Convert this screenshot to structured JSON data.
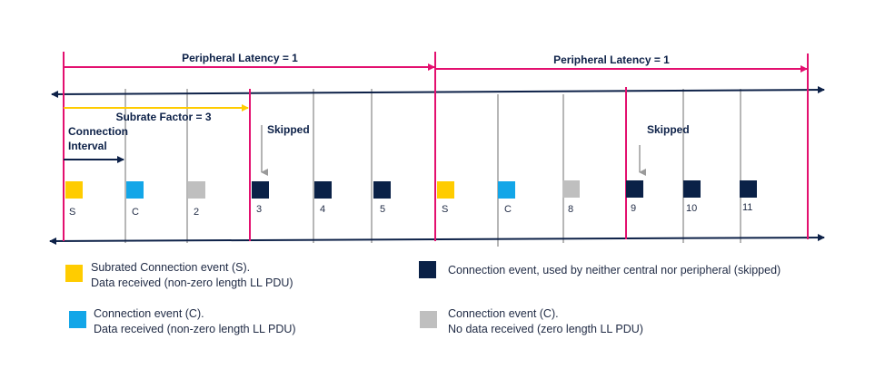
{
  "colors": {
    "magenta": "#e3106f",
    "navy": "#0d2148",
    "gray_line": "#b7b7b7",
    "yellow": "#ffcc00",
    "cyan": "#13a6e8",
    "gray_box": "#bfbfbf",
    "dark_box": "#0a2147"
  },
  "labels": {
    "latency_1": "Peripheral Latency = 1",
    "latency_2": "Peripheral Latency = 1",
    "subrate": "Subrate Factor = 3",
    "conn_interval_line1": "Connection",
    "conn_interval_line2": "Interval",
    "skipped_1": "Skipped",
    "skipped_2": "Skipped"
  },
  "events": [
    {
      "label": "S",
      "kind": "subrated"
    },
    {
      "label": "C",
      "kind": "data"
    },
    {
      "label": "2",
      "kind": "nodata"
    },
    {
      "label": "3",
      "kind": "skipped"
    },
    {
      "label": "4",
      "kind": "skipped"
    },
    {
      "label": "5",
      "kind": "skipped"
    },
    {
      "label": "S",
      "kind": "subrated"
    },
    {
      "label": "C",
      "kind": "data"
    },
    {
      "label": "8",
      "kind": "nodata"
    },
    {
      "label": "9",
      "kind": "skipped"
    },
    {
      "label": "10",
      "kind": "skipped"
    },
    {
      "label": "11",
      "kind": "skipped"
    }
  ],
  "legend": {
    "subrated": {
      "line1": "Subrated Connection event (S).",
      "line2": "Data received (non-zero length LL PDU)"
    },
    "data": {
      "line1": "Connection event (C).",
      "line2": "Data received (non-zero length LL PDU)"
    },
    "skipped": {
      "line1": "Connection event, used by neither central nor peripheral (skipped)"
    },
    "nodata": {
      "line1": "Connection event (C).",
      "line2": "No data received (zero length LL PDU)"
    }
  }
}
